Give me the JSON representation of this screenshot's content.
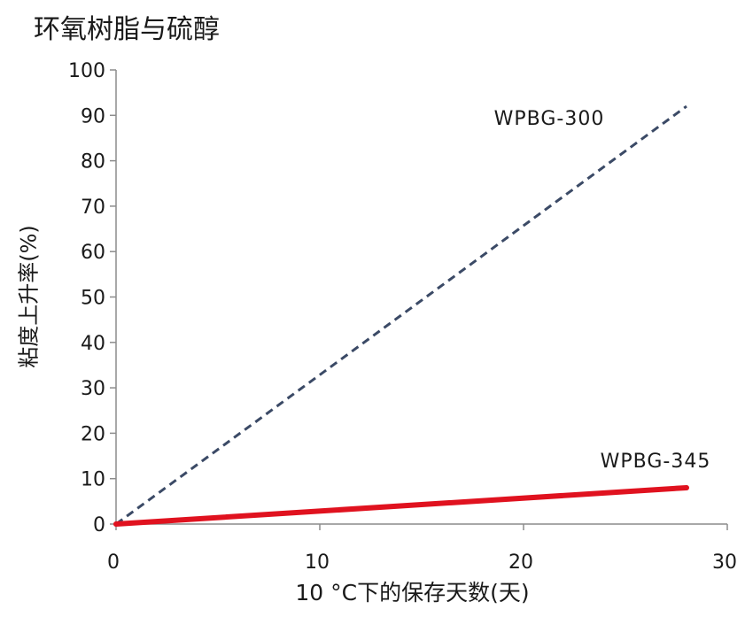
{
  "chart_data": {
    "type": "line",
    "title": "环氧树脂与硫醇",
    "xlabel": "10 °C下的保存天数(天)",
    "ylabel": "粘度上升率(%)",
    "xlim": [
      0,
      30
    ],
    "ylim": [
      0,
      100
    ],
    "x_ticks": [
      0,
      10,
      20,
      30
    ],
    "y_ticks": [
      0,
      10,
      20,
      30,
      40,
      50,
      60,
      70,
      80,
      90,
      100
    ],
    "grid": false,
    "series": [
      {
        "name": "WPBG-300",
        "color": "#3b4a66",
        "style": "dashed",
        "x": [
          0,
          28
        ],
        "y": [
          0,
          92
        ]
      },
      {
        "name": "WPBG-345",
        "color": "#e0121f",
        "style": "solid",
        "x": [
          0,
          28
        ],
        "y": [
          0,
          8
        ]
      }
    ]
  }
}
